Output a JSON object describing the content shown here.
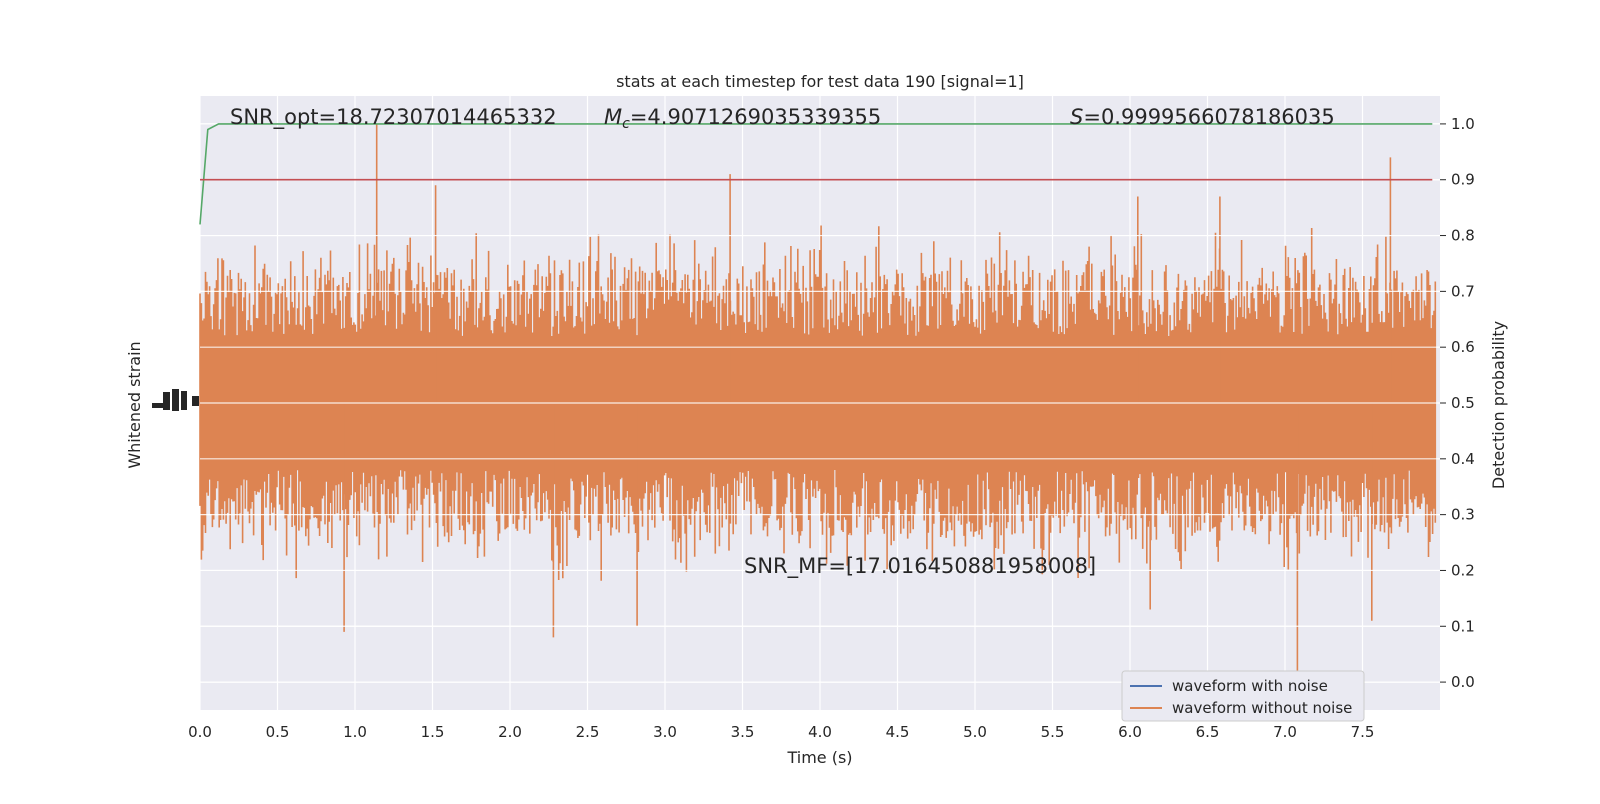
{
  "chart_data": {
    "type": "line",
    "title": "stats at each timestep for test data 190 [signal=1]",
    "xlabel": "Time (s)",
    "ylabel_left": "Whitened strain",
    "ylabel_right": "Detection probability",
    "xlim": [
      0.0,
      8.0
    ],
    "ylim_right": [
      -0.05,
      1.05
    ],
    "x_ticks": [
      "0.0",
      "0.5",
      "1.0",
      "1.5",
      "2.0",
      "2.5",
      "3.0",
      "3.5",
      "4.0",
      "4.5",
      "5.0",
      "5.5",
      "6.0",
      "6.5",
      "7.0",
      "7.5"
    ],
    "x_tick_values": [
      0.0,
      0.5,
      1.0,
      1.5,
      2.0,
      2.5,
      3.0,
      3.5,
      4.0,
      4.5,
      5.0,
      5.5,
      6.0,
      6.5,
      7.0,
      7.5
    ],
    "y_ticks_right": [
      "0.0",
      "0.1",
      "0.2",
      "0.3",
      "0.4",
      "0.5",
      "0.6",
      "0.7",
      "0.8",
      "0.9",
      "1.0"
    ],
    "y_tick_values_right": [
      0.0,
      0.1,
      0.2,
      0.3,
      0.4,
      0.5,
      0.6,
      0.7,
      0.8,
      0.9,
      1.0
    ],
    "annotations": {
      "snr_opt": "SNR_opt=18.72307014465332",
      "mc_symbol": "M",
      "mc_subscript": "c",
      "mc_value": "=4.9071269035339355",
      "s_symbol": "S",
      "s_value": "=0.9999566078186035",
      "snr_mf": "SNR_MF=[17.016450881958008]"
    },
    "legend": {
      "placement": "lower-right",
      "entries": [
        "waveform with noise",
        "waveform without noise"
      ]
    },
    "series": [
      {
        "name": "waveform with noise",
        "color": "#4c72b0",
        "note": "hidden behind orange series"
      },
      {
        "name": "waveform without noise",
        "color": "#dd8452",
        "type": "dense-strain",
        "center": 0.5,
        "spike_max": [
          {
            "x": 1.14,
            "y": 1.0
          },
          {
            "x": 7.68,
            "y": 0.94
          },
          {
            "x": 3.42,
            "y": 0.91
          },
          {
            "x": 1.52,
            "y": 0.89
          },
          {
            "x": 6.05,
            "y": 0.87
          },
          {
            "x": 6.58,
            "y": 0.87
          }
        ],
        "spike_min": [
          {
            "x": 7.08,
            "y": 0.02
          },
          {
            "x": 2.28,
            "y": 0.08
          },
          {
            "x": 0.93,
            "y": 0.09
          },
          {
            "x": 2.82,
            "y": 0.1
          },
          {
            "x": 6.13,
            "y": 0.13
          },
          {
            "x": 7.56,
            "y": 0.11
          }
        ]
      },
      {
        "name": "detection probability",
        "color": "#55a868",
        "x": [
          0.0,
          0.05,
          0.12,
          0.3,
          1.0,
          2.0,
          3.0,
          4.0,
          5.0,
          6.0,
          7.0,
          7.95
        ],
        "y": [
          0.82,
          0.99,
          1.0,
          1.0,
          1.0,
          1.0,
          1.0,
          1.0,
          1.0,
          1.0,
          1.0,
          1.0
        ]
      },
      {
        "name": "threshold",
        "color": "#c44e52",
        "x": [
          0.0,
          7.95
        ],
        "y": [
          0.9,
          0.9
        ]
      }
    ],
    "grid": true,
    "background": "#eaeaf2"
  }
}
